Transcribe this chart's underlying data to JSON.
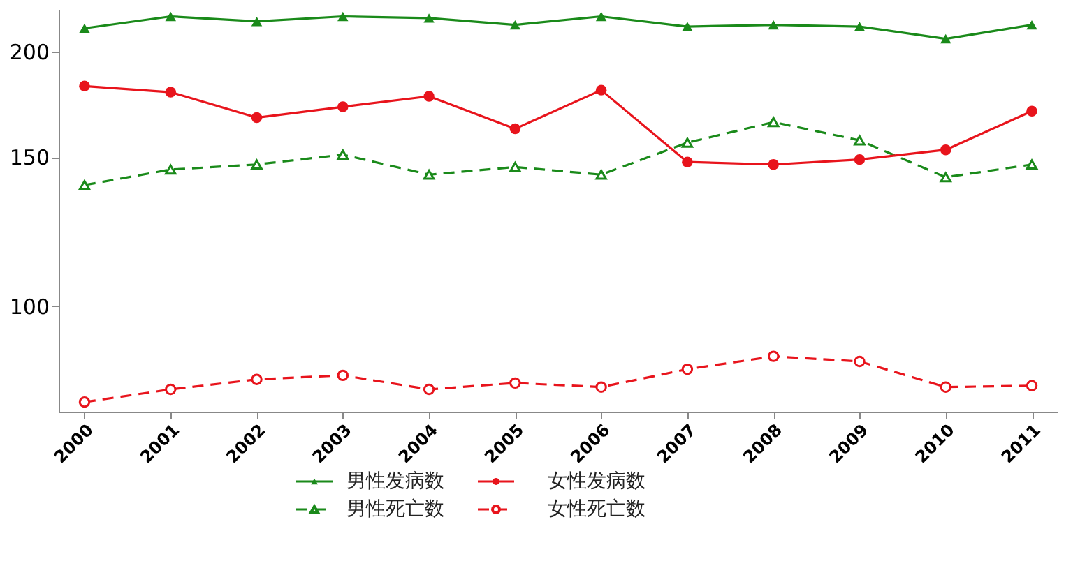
{
  "chart_data": {
    "type": "line",
    "log": "y",
    "categories": [
      "2000",
      "2001",
      "2002",
      "2003",
      "2004",
      "2005",
      "2006",
      "2007",
      "2008",
      "2009",
      "2010",
      "2011"
    ],
    "ylim": [
      75,
      224
    ],
    "yticks": [
      100,
      150,
      200
    ],
    "grid": false,
    "legend": "bottom",
    "series": [
      {
        "name": "男性发病数",
        "color": "#1a8a1a",
        "marker": "triangle",
        "line_style": "solid",
        "values": [
          213,
          220,
          217,
          220,
          219,
          215,
          220,
          214,
          215,
          214,
          207,
          215
        ]
      },
      {
        "name": "男性死亡数",
        "color": "#1a8a1a",
        "marker": "triangle",
        "line_style": "dashed",
        "values": [
          139,
          145,
          147,
          151,
          143,
          146,
          143,
          156,
          165,
          157,
          142,
          147
        ]
      },
      {
        "name": "女性发病数",
        "color": "#e8141c",
        "marker": "circle",
        "line_style": "solid",
        "values": [
          182,
          179,
          167,
          172,
          177,
          162,
          180,
          148,
          147,
          149,
          153,
          170
        ]
      },
      {
        "name": "女性死亡数",
        "color": "#e8141c",
        "marker": "circle",
        "line_style": "dashed",
        "values": [
          77.0,
          79.7,
          81.9,
          82.8,
          79.7,
          81.1,
          80.2,
          84.2,
          87.2,
          86.0,
          80.2,
          80.5
        ]
      }
    ]
  }
}
